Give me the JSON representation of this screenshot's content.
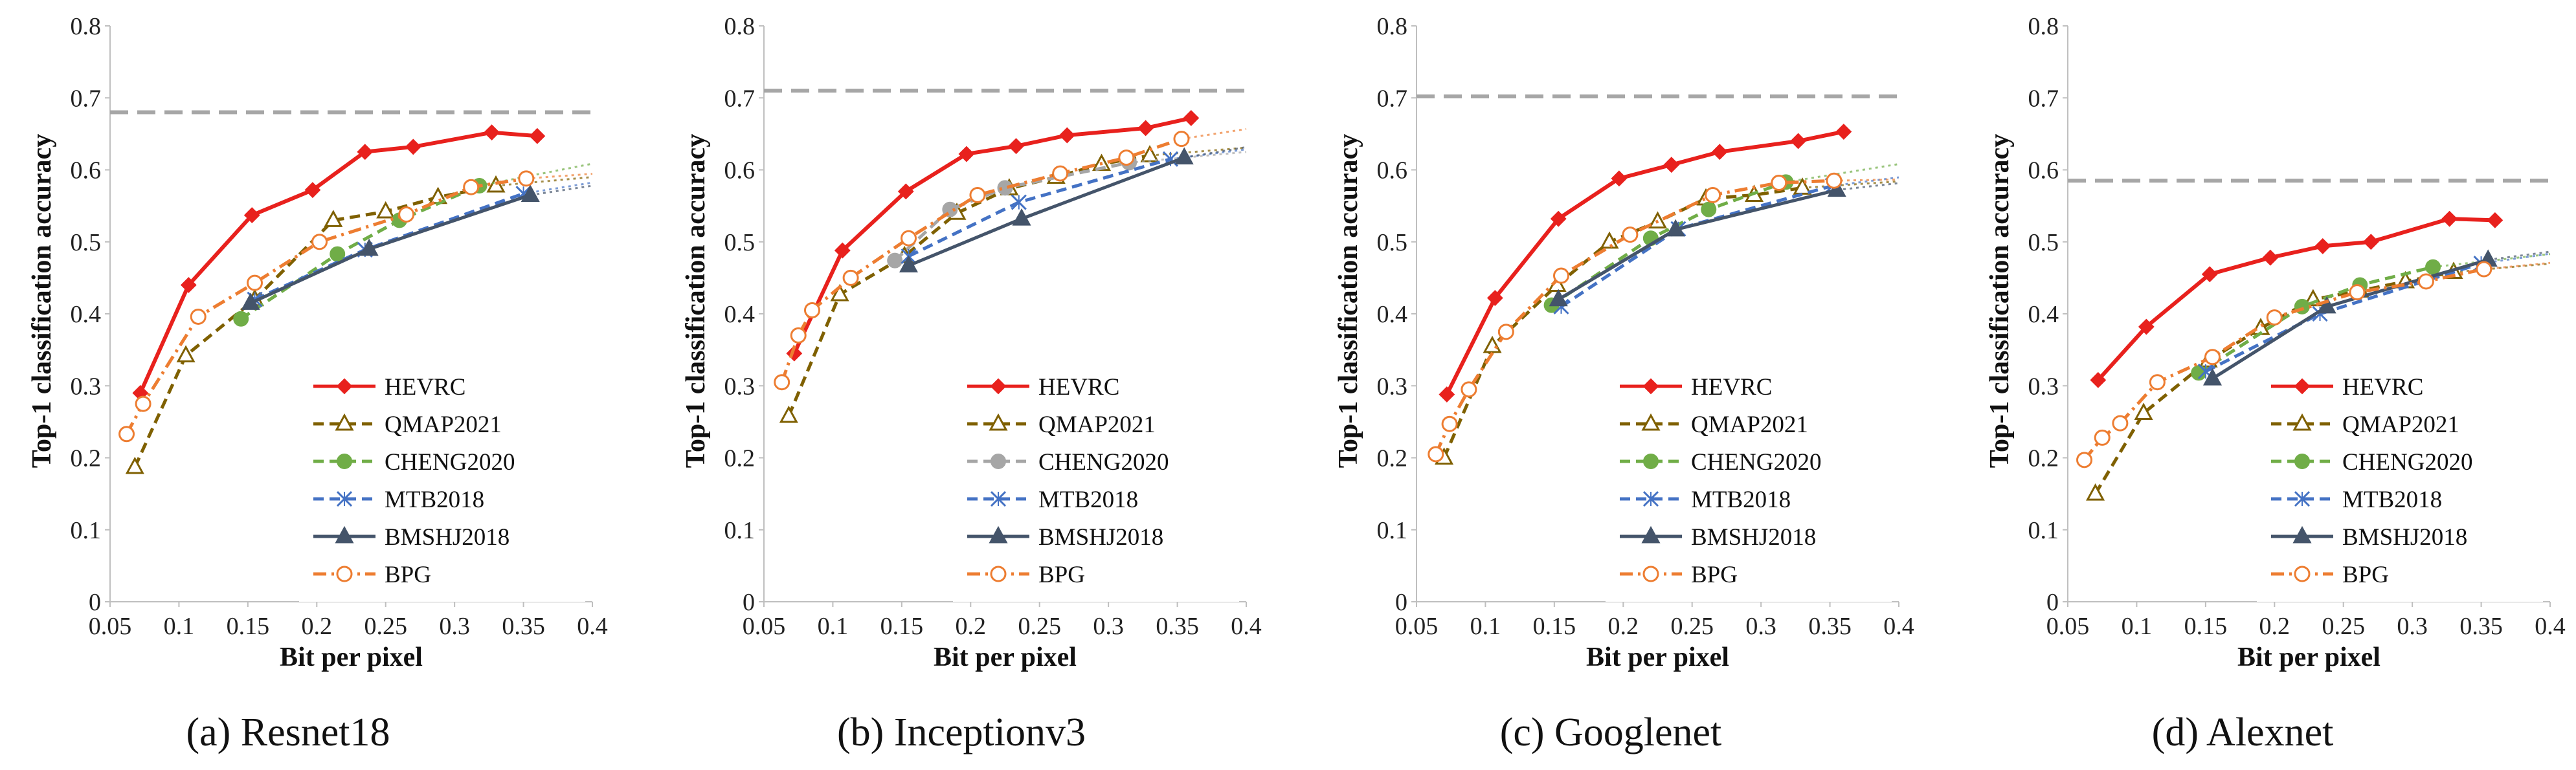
{
  "figure": {
    "x_ticks": [
      "0.05",
      "0.1",
      "0.15",
      "0.2",
      "0.25",
      "0.3",
      "0.35",
      "0.4"
    ],
    "y_ticks": [
      "0",
      "0.1",
      "0.2",
      "0.3",
      "0.4",
      "0.5",
      "0.6",
      "0.7",
      "0.8"
    ]
  },
  "chart_data": [
    {
      "type": "line",
      "caption": "(a)  Resnet18",
      "xlabel": "Bit per pixel",
      "ylabel": "Top-1 classification accuracy",
      "xlim": [
        0.05,
        0.4
      ],
      "ylim": [
        0,
        0.8
      ],
      "grid": false,
      "legend_position": "bottom-right",
      "reference_line": {
        "y": 0.68,
        "color": "#a6a6a6"
      },
      "series": [
        {
          "name": "HEVRC",
          "color": "#e8211d",
          "dash": "solid",
          "marker": "diamond",
          "x": [
            0.072,
            0.107,
            0.153,
            0.197,
            0.235,
            0.27,
            0.327,
            0.36
          ],
          "y": [
            0.29,
            0.44,
            0.537,
            0.572,
            0.625,
            0.632,
            0.652,
            0.647
          ],
          "trend": false
        },
        {
          "name": "QMAP2021",
          "color": "#7f6000",
          "dash": "dash",
          "marker": "triangle-open",
          "x": [
            0.068,
            0.105,
            0.155,
            0.212,
            0.25,
            0.288,
            0.33
          ],
          "y": [
            0.187,
            0.342,
            0.42,
            0.53,
            0.542,
            0.562,
            0.578
          ],
          "trend": true
        },
        {
          "name": "CHENG2020",
          "color": "#70ad47",
          "dash": "dash",
          "marker": "circle",
          "x": [
            0.145,
            0.215,
            0.26,
            0.318
          ],
          "y": [
            0.393,
            0.483,
            0.53,
            0.578
          ],
          "trend": true
        },
        {
          "name": "MTB2018",
          "color": "#4472c4",
          "dash": "dash",
          "marker": "x",
          "x": [
            0.155,
            0.235,
            0.35
          ],
          "y": [
            0.42,
            0.489,
            0.567
          ],
          "trend": true
        },
        {
          "name": "BMSHJ2018",
          "color": "#44546a",
          "dash": "solid",
          "marker": "triangle",
          "x": [
            0.152,
            0.238,
            0.355
          ],
          "y": [
            0.415,
            0.49,
            0.565
          ],
          "trend": true
        },
        {
          "name": "BPG",
          "color": "#ed7d31",
          "dash": "dashdot",
          "marker": "circle-open",
          "x": [
            0.062,
            0.074,
            0.114,
            0.155,
            0.202,
            0.265,
            0.312,
            0.352
          ],
          "y": [
            0.233,
            0.275,
            0.396,
            0.443,
            0.5,
            0.538,
            0.576,
            0.588
          ],
          "trend": true
        }
      ]
    },
    {
      "type": "line",
      "caption": "(b)  Inceptionv3",
      "xlabel": "Bit per pixel",
      "ylabel": "Top-1 classification accuracy",
      "xlim": [
        0.05,
        0.4
      ],
      "ylim": [
        0,
        0.8
      ],
      "grid": false,
      "legend_position": "bottom-right",
      "reference_line": {
        "y": 0.71,
        "color": "#a6a6a6"
      },
      "series": [
        {
          "name": "HEVRC",
          "color": "#e8211d",
          "dash": "solid",
          "marker": "diamond",
          "x": [
            0.072,
            0.107,
            0.153,
            0.197,
            0.233,
            0.27,
            0.327,
            0.36
          ],
          "y": [
            0.345,
            0.488,
            0.57,
            0.622,
            0.633,
            0.648,
            0.658,
            0.672
          ],
          "trend": false
        },
        {
          "name": "QMAP2021",
          "color": "#7f6000",
          "dash": "dash",
          "marker": "triangle-open",
          "x": [
            0.068,
            0.105,
            0.152,
            0.19,
            0.228,
            0.262,
            0.295,
            0.33
          ],
          "y": [
            0.258,
            0.427,
            0.48,
            0.54,
            0.574,
            0.59,
            0.608,
            0.62
          ],
          "trend": true
        },
        {
          "name": "CHENG2020",
          "color": "#a6a6a6",
          "dash": "dash",
          "marker": "circle",
          "x": [
            0.145,
            0.185,
            0.225,
            0.315
          ],
          "y": [
            0.474,
            0.545,
            0.575,
            0.61
          ],
          "trend": true
        },
        {
          "name": "MTB2018",
          "color": "#4472c4",
          "dash": "dash",
          "marker": "x",
          "x": [
            0.155,
            0.235,
            0.345
          ],
          "y": [
            0.48,
            0.555,
            0.615
          ],
          "trend": true
        },
        {
          "name": "BMSHJ2018",
          "color": "#44546a",
          "dash": "solid",
          "marker": "triangle",
          "x": [
            0.155,
            0.237,
            0.355
          ],
          "y": [
            0.467,
            0.532,
            0.617
          ],
          "trend": true
        },
        {
          "name": "BPG",
          "color": "#ed7d31",
          "dash": "dashdot",
          "marker": "circle-open",
          "x": [
            0.063,
            0.075,
            0.085,
            0.113,
            0.155,
            0.205,
            0.265,
            0.313,
            0.353
          ],
          "y": [
            0.305,
            0.37,
            0.405,
            0.45,
            0.505,
            0.565,
            0.595,
            0.617,
            0.643
          ],
          "trend": true
        }
      ]
    },
    {
      "type": "line",
      "caption": "(c)  Googlenet",
      "xlabel": "Bit per pixel",
      "ylabel": "Top-1 classification accuracy",
      "xlim": [
        0.05,
        0.4
      ],
      "ylim": [
        0,
        0.8
      ],
      "grid": false,
      "legend_position": "bottom-right",
      "reference_line": {
        "y": 0.702,
        "color": "#a6a6a6"
      },
      "series": [
        {
          "name": "HEVRC",
          "color": "#e8211d",
          "dash": "solid",
          "marker": "diamond",
          "x": [
            0.072,
            0.107,
            0.153,
            0.197,
            0.235,
            0.27,
            0.327,
            0.36
          ],
          "y": [
            0.288,
            0.422,
            0.532,
            0.588,
            0.607,
            0.625,
            0.64,
            0.653
          ],
          "trend": false
        },
        {
          "name": "QMAP2021",
          "color": "#7f6000",
          "dash": "dash",
          "marker": "triangle-open",
          "x": [
            0.07,
            0.105,
            0.152,
            0.19,
            0.225,
            0.26,
            0.295,
            0.33
          ],
          "y": [
            0.2,
            0.355,
            0.44,
            0.5,
            0.528,
            0.56,
            0.565,
            0.575
          ],
          "trend": true
        },
        {
          "name": "CHENG2020",
          "color": "#70ad47",
          "dash": "dash",
          "marker": "circle",
          "x": [
            0.148,
            0.22,
            0.262,
            0.318
          ],
          "y": [
            0.412,
            0.505,
            0.545,
            0.583
          ],
          "trend": true
        },
        {
          "name": "MTB2018",
          "color": "#4472c4",
          "dash": "dash",
          "marker": "x",
          "x": [
            0.155,
            0.24,
            0.352
          ],
          "y": [
            0.41,
            0.518,
            0.578
          ],
          "trend": true
        },
        {
          "name": "BMSHJ2018",
          "color": "#44546a",
          "dash": "solid",
          "marker": "triangle",
          "x": [
            0.153,
            0.238,
            0.355
          ],
          "y": [
            0.42,
            0.517,
            0.572
          ],
          "trend": true
        },
        {
          "name": "BPG",
          "color": "#ed7d31",
          "dash": "dashdot",
          "marker": "circle-open",
          "x": [
            0.064,
            0.074,
            0.088,
            0.115,
            0.155,
            0.205,
            0.265,
            0.313,
            0.353
          ],
          "y": [
            0.205,
            0.247,
            0.295,
            0.375,
            0.453,
            0.51,
            0.565,
            0.582,
            0.585
          ],
          "trend": true
        }
      ]
    },
    {
      "type": "line",
      "caption": "(d)  Alexnet",
      "xlabel": "Bit per pixel",
      "ylabel": "Top-1 classification accuracy",
      "xlim": [
        0.05,
        0.4
      ],
      "ylim": [
        0,
        0.8
      ],
      "grid": false,
      "legend_position": "bottom-right",
      "reference_line": {
        "y": 0.585,
        "color": "#a6a6a6"
      },
      "series": [
        {
          "name": "HEVRC",
          "color": "#e8211d",
          "dash": "solid",
          "marker": "diamond",
          "x": [
            0.072,
            0.107,
            0.153,
            0.197,
            0.235,
            0.27,
            0.327,
            0.36
          ],
          "y": [
            0.308,
            0.382,
            0.455,
            0.478,
            0.494,
            0.5,
            0.532,
            0.53
          ],
          "trend": false
        },
        {
          "name": "QMAP2021",
          "color": "#7f6000",
          "dash": "dash",
          "marker": "triangle-open",
          "x": [
            0.07,
            0.105,
            0.152,
            0.19,
            0.228,
            0.262,
            0.295,
            0.33
          ],
          "y": [
            0.15,
            0.262,
            0.335,
            0.38,
            0.42,
            0.432,
            0.445,
            0.458
          ],
          "trend": true
        },
        {
          "name": "CHENG2020",
          "color": "#70ad47",
          "dash": "dash",
          "marker": "circle",
          "x": [
            0.145,
            0.22,
            0.262,
            0.315
          ],
          "y": [
            0.318,
            0.41,
            0.44,
            0.465
          ],
          "trend": true
        },
        {
          "name": "MTB2018",
          "color": "#4472c4",
          "dash": "dash",
          "marker": "x",
          "x": [
            0.15,
            0.233,
            0.35
          ],
          "y": [
            0.32,
            0.4,
            0.47
          ],
          "trend": true
        },
        {
          "name": "BMSHJ2018",
          "color": "#44546a",
          "dash": "solid",
          "marker": "triangle",
          "x": [
            0.155,
            0.238,
            0.355
          ],
          "y": [
            0.31,
            0.41,
            0.475
          ],
          "trend": true
        },
        {
          "name": "BPG",
          "color": "#ed7d31",
          "dash": "dashdot",
          "marker": "circle-open",
          "x": [
            0.062,
            0.075,
            0.088,
            0.115,
            0.155,
            0.2,
            0.26,
            0.31,
            0.352
          ],
          "y": [
            0.197,
            0.228,
            0.248,
            0.305,
            0.34,
            0.395,
            0.43,
            0.445,
            0.462
          ],
          "trend": true
        }
      ]
    }
  ]
}
